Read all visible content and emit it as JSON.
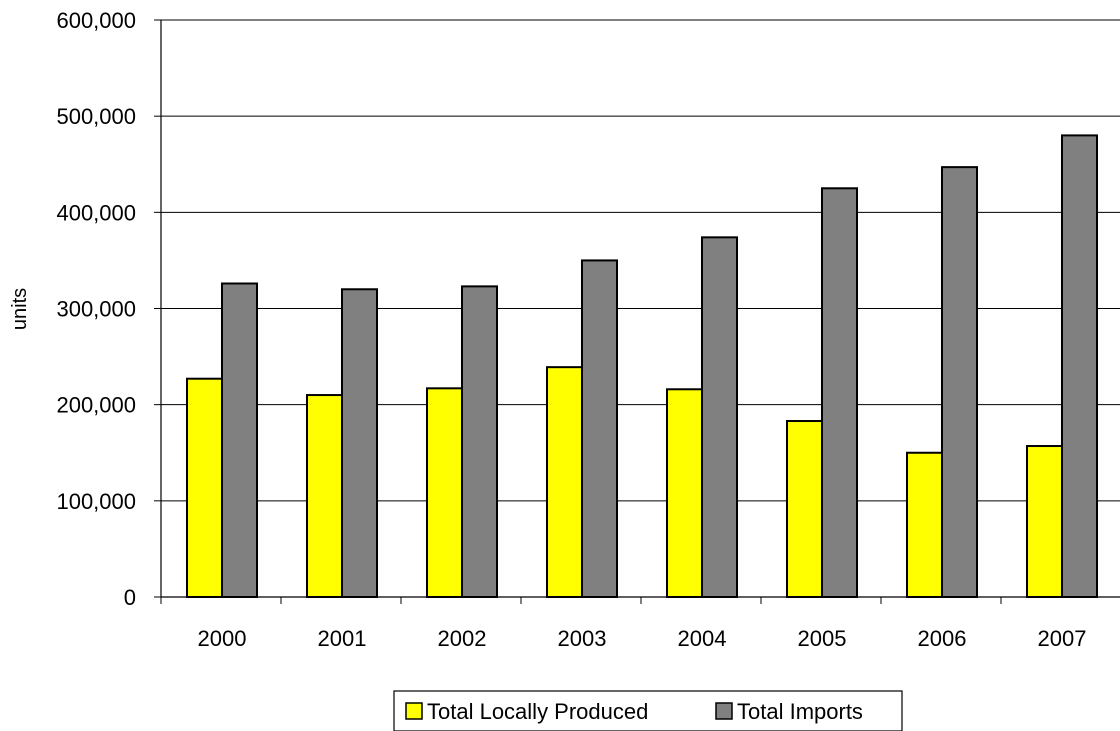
{
  "chart_data": {
    "type": "bar",
    "title": "",
    "xlabel": "",
    "ylabel": "units",
    "categories": [
      "2000",
      "2001",
      "2002",
      "2003",
      "2004",
      "2005",
      "2006",
      "2007"
    ],
    "series": [
      {
        "name": "Total Locally Produced",
        "color": "#ffff00",
        "values": [
          227000,
          210000,
          217000,
          239000,
          216000,
          183000,
          150000,
          157000
        ]
      },
      {
        "name": "Total Imports",
        "color": "#808080",
        "values": [
          326000,
          320000,
          323000,
          350000,
          374000,
          425000,
          447000,
          480000
        ]
      }
    ],
    "ylim": [
      0,
      600000
    ],
    "yticks": [
      0,
      100000,
      200000,
      300000,
      400000,
      500000,
      600000
    ],
    "ytick_labels": [
      "0",
      "100,000",
      "200,000",
      "300,000",
      "400,000",
      "500,000",
      "600,000"
    ],
    "grid": true,
    "legend_position": "bottom"
  }
}
